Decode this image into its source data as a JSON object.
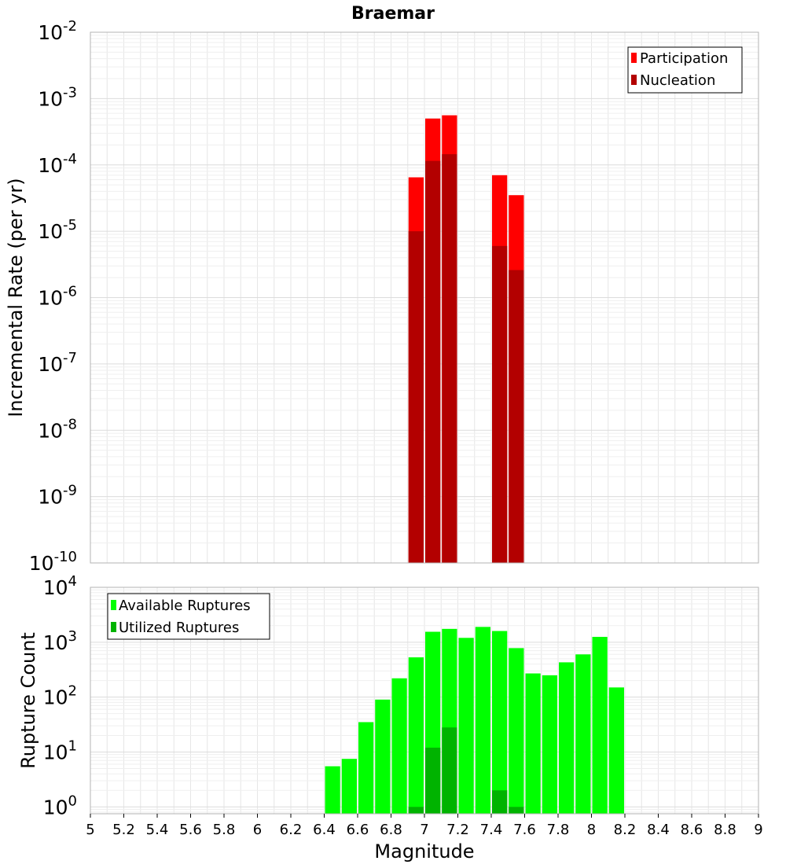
{
  "title": "Braemar",
  "xlabel": "Magnitude",
  "x_ticks": [
    "5",
    "5.2",
    "5.4",
    "5.6",
    "5.8",
    "6",
    "6.2",
    "6.4",
    "6.6",
    "6.8",
    "7",
    "7.2",
    "7.4",
    "7.6",
    "7.8",
    "8",
    "8.2",
    "8.4",
    "8.6",
    "8.8",
    "9"
  ],
  "colors": {
    "participation": "#ff0000",
    "nucleation": "#b30000",
    "available": "#00ff00",
    "utilized": "#00b300",
    "grid": "#e6e6e6",
    "frame": "#b3b3b3"
  },
  "chart_data": [
    {
      "type": "bar",
      "ylabel": "Incremental Rate (per yr)",
      "yscale": "log",
      "xlim": [
        5,
        9
      ],
      "ylim": [
        1e-10,
        0.01
      ],
      "y_ticks": [
        {
          "base": "10",
          "exp": "-2"
        },
        {
          "base": "10",
          "exp": "-3"
        },
        {
          "base": "10",
          "exp": "-4"
        },
        {
          "base": "10",
          "exp": "-5"
        },
        {
          "base": "10",
          "exp": "-6"
        },
        {
          "base": "10",
          "exp": "-7"
        },
        {
          "base": "10",
          "exp": "-8"
        },
        {
          "base": "10",
          "exp": "-9"
        },
        {
          "base": "10",
          "exp": "-10"
        }
      ],
      "legend_position": "top-right",
      "x": [
        6.95,
        7.05,
        7.15,
        7.45,
        7.55
      ],
      "series": [
        {
          "name": "Participation",
          "values": [
            6.5e-05,
            0.0005,
            0.00056,
            7e-05,
            3.5e-05
          ]
        },
        {
          "name": "Nucleation",
          "values": [
            1e-05,
            0.000115,
            0.000145,
            6e-06,
            2.6e-06
          ]
        }
      ]
    },
    {
      "type": "bar",
      "ylabel": "Rupture Count",
      "yscale": "log",
      "xlim": [
        5,
        9
      ],
      "ylim": [
        0.75,
        10000
      ],
      "y_ticks": [
        {
          "base": "10",
          "exp": "4"
        },
        {
          "base": "10",
          "exp": "3"
        },
        {
          "base": "10",
          "exp": "2"
        },
        {
          "base": "10",
          "exp": "1"
        },
        {
          "base": "10",
          "exp": "0"
        }
      ],
      "legend_position": "top-left",
      "series": [
        {
          "name": "Available Ruptures",
          "x": [
            6.45,
            6.55,
            6.65,
            6.75,
            6.85,
            6.95,
            7.05,
            7.15,
            7.25,
            7.35,
            7.45,
            7.55,
            7.65,
            7.75,
            7.85,
            7.95,
            8.05,
            8.15
          ],
          "values": [
            5.5,
            7.5,
            35,
            90,
            220,
            530,
            1550,
            1750,
            1200,
            1900,
            1600,
            780,
            270,
            250,
            430,
            600,
            1250,
            150
          ]
        },
        {
          "name": "Utilized Ruptures",
          "x": [
            6.95,
            7.05,
            7.15,
            7.45,
            7.55
          ],
          "values": [
            1,
            12,
            28,
            2,
            1
          ]
        }
      ]
    }
  ]
}
